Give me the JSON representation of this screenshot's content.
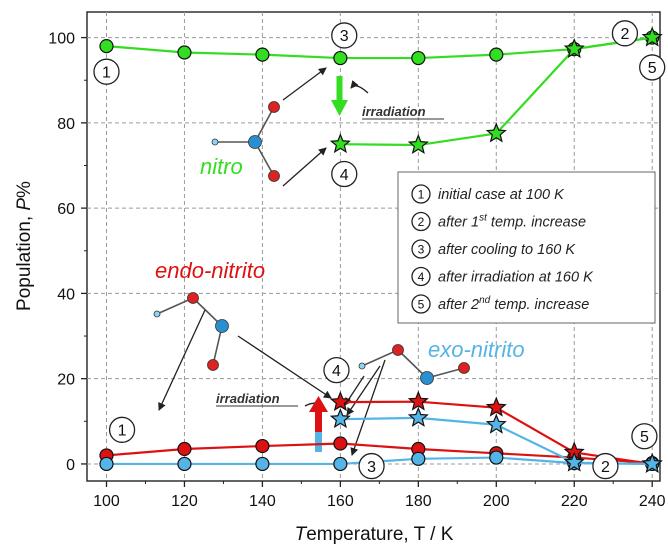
{
  "chart_data": {
    "type": "line",
    "xlabel": "Temperature, T / K",
    "ylabel": "Population, P%",
    "xlim": [
      95,
      242
    ],
    "ylim": [
      -4,
      106
    ],
    "xticks": [
      100,
      120,
      140,
      160,
      180,
      200,
      220,
      240
    ],
    "yticks": [
      0,
      20,
      40,
      60,
      80,
      100
    ],
    "grid": true,
    "colors": {
      "nitro": "#33dd22",
      "endo": "#dd1111",
      "exo": "#55b4e6",
      "molecule_red": "#dd2222",
      "molecule_blue": "#2a8fd0",
      "text_gray": "#333333"
    },
    "series": [
      {
        "name": "nitro",
        "phase": "initial",
        "marker": "circle",
        "color": "#33dd22",
        "x": [
          100,
          120,
          140,
          160,
          180,
          200,
          220,
          240
        ],
        "y": [
          98,
          96.5,
          96,
          95.2,
          95.2,
          96,
          97.3,
          100
        ]
      },
      {
        "name": "nitro",
        "phase": "irradiated",
        "marker": "star",
        "color": "#33dd22",
        "x": [
          160,
          180,
          200,
          220,
          240
        ],
        "y": [
          75,
          74.8,
          77.5,
          97.3,
          100
        ]
      },
      {
        "name": "endo-nitrito",
        "phase": "initial",
        "marker": "circle",
        "color": "#dd1111",
        "x": [
          100,
          120,
          140,
          160,
          180,
          200,
          220,
          240
        ],
        "y": [
          2,
          3.5,
          4.2,
          4.8,
          3.5,
          2.5,
          1.5,
          0.2
        ]
      },
      {
        "name": "endo-nitrito",
        "phase": "irradiated",
        "marker": "star",
        "color": "#dd1111",
        "x": [
          160,
          180,
          200,
          220,
          240
        ],
        "y": [
          14.5,
          14.6,
          13.2,
          2.7,
          0
        ]
      },
      {
        "name": "exo-nitrito",
        "phase": "initial",
        "marker": "circle",
        "color": "#55b4e6",
        "x": [
          100,
          120,
          140,
          160,
          180,
          200,
          220,
          240
        ],
        "y": [
          0,
          0,
          0,
          0,
          1.2,
          1.5,
          0.2,
          0
        ]
      },
      {
        "name": "exo-nitrito",
        "phase": "irradiated",
        "marker": "star",
        "color": "#55b4e6",
        "x": [
          160,
          180,
          200,
          220,
          240
        ],
        "y": [
          10.5,
          10.8,
          9.2,
          0.3,
          0
        ]
      }
    ],
    "species_labels": [
      {
        "text": "nitro",
        "color": "#33dd22"
      },
      {
        "text": "endo-nitrito",
        "color": "#dd1111"
      },
      {
        "text": "exo-nitrito",
        "color": "#55b4e6"
      }
    ],
    "irradiation_label": "irradiation",
    "step_markers": [
      {
        "num": "1",
        "x": 100,
        "y": 92
      },
      {
        "num": "3",
        "x": 161,
        "y": 100.5
      },
      {
        "num": "4",
        "x": 161,
        "y": 68
      },
      {
        "num": "2",
        "x": 233,
        "y": 101
      },
      {
        "num": "5",
        "x": 240,
        "y": 93
      },
      {
        "num": "1",
        "x": 104,
        "y": 8
      },
      {
        "num": "4",
        "x": 159,
        "y": 22
      },
      {
        "num": "3",
        "x": 168,
        "y": -0.5
      },
      {
        "num": "2",
        "x": 228,
        "y": -0.5
      },
      {
        "num": "5",
        "x": 238,
        "y": 6.5
      }
    ],
    "legend": {
      "position": "right",
      "entries": [
        {
          "num": "1",
          "text": "initial case at 100 K"
        },
        {
          "num": "2",
          "text": "after 1",
          "sup": "st",
          "rest": " temp. increase"
        },
        {
          "num": "3",
          "text": "after cooling to 160 K"
        },
        {
          "num": "4",
          "text": "after irradiation at 160 K"
        },
        {
          "num": "5",
          "text": "after 2",
          "sup": "nd",
          "rest": " temp. increase"
        }
      ]
    }
  }
}
